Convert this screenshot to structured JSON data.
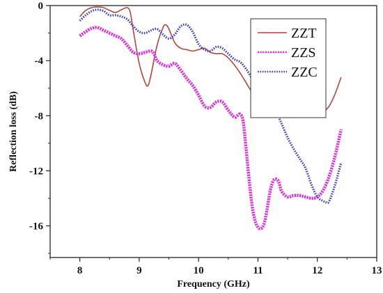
{
  "chart_data": {
    "type": "line",
    "xlabel": "Frequency (GHz)",
    "ylabel": "Reflection loss (dB)",
    "xlim": [
      7.5,
      13
    ],
    "ylim": [
      -18.3,
      0
    ],
    "xticks": [
      8,
      9,
      10,
      11,
      12,
      13
    ],
    "yticks": [
      0,
      -4,
      -8,
      -12,
      -16
    ],
    "legend_position": "top-right",
    "series": [
      {
        "name": "ZZT",
        "color": "#b5443a",
        "style": "solid",
        "points": [
          [
            8.0,
            -0.8
          ],
          [
            8.1,
            -0.35
          ],
          [
            8.2,
            -0.15
          ],
          [
            8.3,
            -0.1
          ],
          [
            8.4,
            -0.15
          ],
          [
            8.5,
            -0.35
          ],
          [
            8.6,
            -0.5
          ],
          [
            8.7,
            -0.3
          ],
          [
            8.8,
            -0.15
          ],
          [
            8.85,
            -0.5
          ],
          [
            8.9,
            -1.8
          ],
          [
            9.0,
            -4.2
          ],
          [
            9.1,
            -5.6
          ],
          [
            9.15,
            -5.8
          ],
          [
            9.2,
            -5.0
          ],
          [
            9.3,
            -2.9
          ],
          [
            9.4,
            -1.6
          ],
          [
            9.45,
            -1.4
          ],
          [
            9.5,
            -1.7
          ],
          [
            9.6,
            -2.7
          ],
          [
            9.7,
            -3.1
          ],
          [
            9.8,
            -3.2
          ],
          [
            9.9,
            -3.3
          ],
          [
            10.0,
            -3.2
          ],
          [
            10.1,
            -3.1
          ],
          [
            10.2,
            -3.4
          ],
          [
            10.3,
            -3.5
          ],
          [
            10.4,
            -3.5
          ],
          [
            10.5,
            -3.8
          ],
          [
            10.6,
            -4.3
          ],
          [
            10.7,
            -4.9
          ],
          [
            10.8,
            -5.6
          ],
          [
            10.9,
            -6.3
          ],
          [
            11.0,
            -6.8
          ],
          [
            11.1,
            -7.0
          ],
          [
            11.2,
            -7.2
          ],
          [
            11.3,
            -7.2
          ],
          [
            11.4,
            -7.2
          ],
          [
            11.5,
            -7.2
          ],
          [
            11.6,
            -7.0
          ],
          [
            11.7,
            -6.9
          ],
          [
            11.8,
            -7.1
          ],
          [
            11.9,
            -7.6
          ],
          [
            12.0,
            -7.8
          ],
          [
            12.1,
            -7.7
          ],
          [
            12.2,
            -7.3
          ],
          [
            12.3,
            -6.4
          ],
          [
            12.4,
            -5.2
          ]
        ]
      },
      {
        "name": "ZZS",
        "color": "#e62be6",
        "style": "dashdot",
        "points": [
          [
            8.0,
            -2.2
          ],
          [
            8.1,
            -1.9
          ],
          [
            8.2,
            -1.65
          ],
          [
            8.3,
            -1.6
          ],
          [
            8.4,
            -1.8
          ],
          [
            8.5,
            -2.0
          ],
          [
            8.6,
            -2.2
          ],
          [
            8.7,
            -2.4
          ],
          [
            8.8,
            -2.9
          ],
          [
            8.9,
            -3.4
          ],
          [
            9.0,
            -3.5
          ],
          [
            9.1,
            -3.4
          ],
          [
            9.2,
            -3.3
          ],
          [
            9.25,
            -3.5
          ],
          [
            9.3,
            -4.0
          ],
          [
            9.4,
            -4.3
          ],
          [
            9.5,
            -4.4
          ],
          [
            9.6,
            -4.2
          ],
          [
            9.7,
            -4.7
          ],
          [
            9.8,
            -5.3
          ],
          [
            9.9,
            -5.8
          ],
          [
            10.0,
            -6.5
          ],
          [
            10.1,
            -7.3
          ],
          [
            10.2,
            -7.4
          ],
          [
            10.3,
            -7.0
          ],
          [
            10.4,
            -7.0
          ],
          [
            10.5,
            -7.6
          ],
          [
            10.6,
            -8.1
          ],
          [
            10.65,
            -8.0
          ],
          [
            10.7,
            -7.9
          ],
          [
            10.75,
            -8.4
          ],
          [
            10.8,
            -10.4
          ],
          [
            10.85,
            -12.6
          ],
          [
            10.9,
            -14.5
          ],
          [
            10.95,
            -15.6
          ],
          [
            11.0,
            -16.1
          ],
          [
            11.05,
            -16.2
          ],
          [
            11.1,
            -15.9
          ],
          [
            11.15,
            -14.9
          ],
          [
            11.2,
            -13.6
          ],
          [
            11.25,
            -12.8
          ],
          [
            11.3,
            -12.6
          ],
          [
            11.35,
            -12.8
          ],
          [
            11.4,
            -13.5
          ],
          [
            11.5,
            -13.9
          ],
          [
            11.6,
            -13.8
          ],
          [
            11.7,
            -13.8
          ],
          [
            11.8,
            -13.9
          ],
          [
            11.9,
            -14.0
          ],
          [
            12.0,
            -13.9
          ],
          [
            12.1,
            -13.4
          ],
          [
            12.2,
            -12.4
          ],
          [
            12.3,
            -10.9
          ],
          [
            12.4,
            -9.0
          ]
        ]
      },
      {
        "name": "ZZC",
        "color": "#3b3bdc",
        "style": "dotted",
        "points": [
          [
            8.0,
            -1.1
          ],
          [
            8.1,
            -0.7
          ],
          [
            8.2,
            -0.4
          ],
          [
            8.3,
            -0.3
          ],
          [
            8.4,
            -0.4
          ],
          [
            8.5,
            -0.7
          ],
          [
            8.6,
            -0.7
          ],
          [
            8.7,
            -0.8
          ],
          [
            8.8,
            -1.0
          ],
          [
            8.9,
            -1.5
          ],
          [
            9.0,
            -1.9
          ],
          [
            9.1,
            -2.0
          ],
          [
            9.2,
            -1.8
          ],
          [
            9.3,
            -1.7
          ],
          [
            9.4,
            -2.1
          ],
          [
            9.5,
            -2.4
          ],
          [
            9.6,
            -2.1
          ],
          [
            9.7,
            -1.5
          ],
          [
            9.8,
            -1.4
          ],
          [
            9.9,
            -1.9
          ],
          [
            10.0,
            -2.8
          ],
          [
            10.1,
            -3.2
          ],
          [
            10.2,
            -3.3
          ],
          [
            10.3,
            -3.0
          ],
          [
            10.4,
            -3.1
          ],
          [
            10.5,
            -3.5
          ],
          [
            10.6,
            -3.9
          ],
          [
            10.7,
            -4.1
          ],
          [
            10.8,
            -4.6
          ],
          [
            10.9,
            -5.3
          ],
          [
            11.0,
            -6.0
          ],
          [
            11.1,
            -6.5
          ],
          [
            11.2,
            -7.0
          ],
          [
            11.3,
            -7.7
          ],
          [
            11.4,
            -8.6
          ],
          [
            11.5,
            -9.6
          ],
          [
            11.6,
            -10.4
          ],
          [
            11.7,
            -11.1
          ],
          [
            11.8,
            -11.8
          ],
          [
            11.9,
            -13.0
          ],
          [
            12.0,
            -13.9
          ],
          [
            12.1,
            -14.2
          ],
          [
            12.15,
            -14.3
          ],
          [
            12.2,
            -14.2
          ],
          [
            12.3,
            -13.0
          ],
          [
            12.4,
            -11.4
          ]
        ]
      }
    ]
  }
}
